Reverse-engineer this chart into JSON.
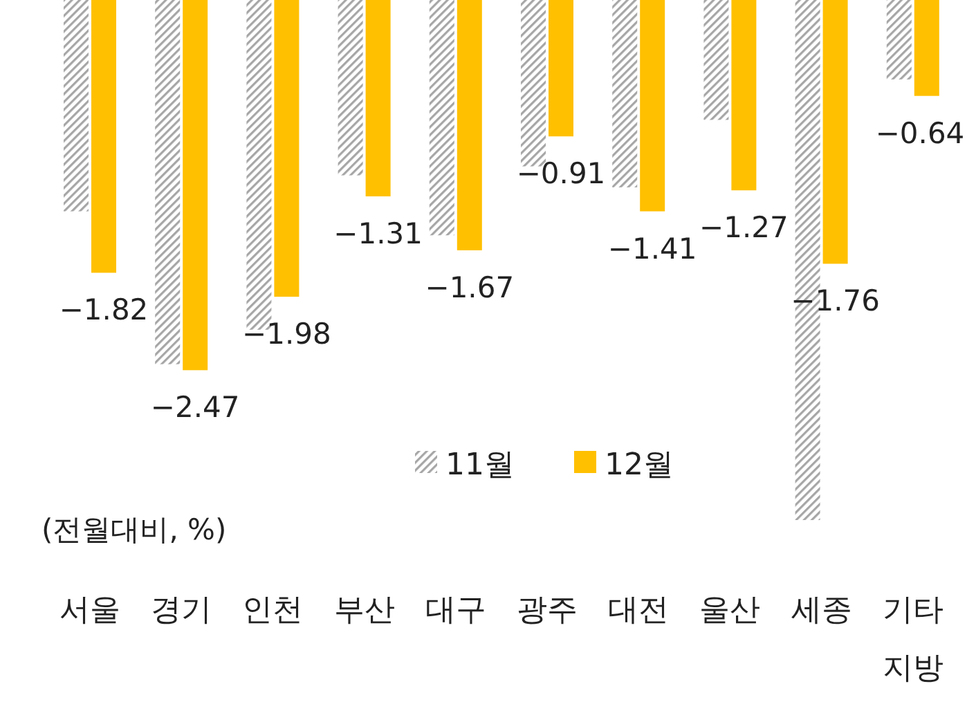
{
  "chart_data": {
    "type": "bar",
    "categories": [
      "서울",
      "경기",
      "인천",
      "부산",
      "대구",
      "광주",
      "대전",
      "울산",
      "세종",
      "기타\n지방"
    ],
    "series": [
      {
        "name": "11월",
        "color": "#a6a6a6",
        "values": [
          -1.41,
          -2.43,
          -2.2,
          -1.17,
          -1.57,
          -1.11,
          -1.25,
          -0.8,
          -3.47,
          -0.53
        ]
      },
      {
        "name": "12월",
        "color": "#ffc000",
        "values": [
          -1.82,
          -2.47,
          -1.98,
          -1.31,
          -1.67,
          -0.91,
          -1.41,
          -1.27,
          -1.76,
          -0.64
        ],
        "value_labels": [
          "−1.82",
          "−2.47",
          "−1.98",
          "−1.31",
          "−1.67",
          "−0.91",
          "−1.41",
          "−1.27",
          "−1.76",
          "−0.64"
        ]
      }
    ],
    "legend": "bottom",
    "annotations": [
      "(전월대비, %)"
    ]
  }
}
